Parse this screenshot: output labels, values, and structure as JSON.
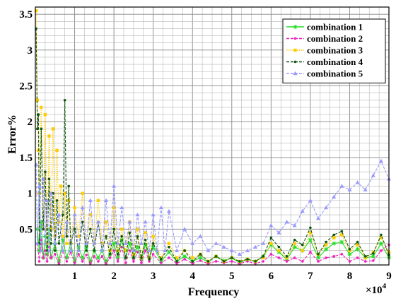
{
  "chart_data": {
    "type": "line",
    "xlabel": "Frequency",
    "ylabel": "Error%",
    "x_multiplier": "×10",
    "x_multiplier_exp": "4",
    "xlim": [
      0,
      9
    ],
    "ylim": [
      0,
      3.6
    ],
    "xticks": [
      1,
      2,
      3,
      4,
      5,
      6,
      7,
      8,
      9
    ],
    "yticks": [
      0.5,
      1,
      1.5,
      2,
      2.5,
      3,
      3.5
    ],
    "xtick_labels": [
      "1",
      "2",
      "3",
      "4",
      "5",
      "6",
      "7",
      "8",
      "9"
    ],
    "ytick_labels": [
      "0.5",
      "1",
      "1.5",
      "2",
      "2.5",
      "3",
      "3.5"
    ],
    "grid": true,
    "legend_position": "top-right",
    "series": [
      {
        "name": "combination 1",
        "color": "#22dd22",
        "marker": "star",
        "dash": "solid",
        "x": [
          0.05,
          0.1,
          0.15,
          0.2,
          0.25,
          0.3,
          0.35,
          0.4,
          0.5,
          0.6,
          0.7,
          0.8,
          0.9,
          1.0,
          1.1,
          1.2,
          1.3,
          1.4,
          1.5,
          1.6,
          1.7,
          1.8,
          1.9,
          2.0,
          2.1,
          2.2,
          2.3,
          2.4,
          2.5,
          2.6,
          2.7,
          2.8,
          2.9,
          3.0,
          3.2,
          3.4,
          3.6,
          3.8,
          4.0,
          4.2,
          4.4,
          4.6,
          4.8,
          5.0,
          5.2,
          5.4,
          5.6,
          5.8,
          6.0,
          6.2,
          6.4,
          6.6,
          6.8,
          7.0,
          7.2,
          7.4,
          7.6,
          7.8,
          8.0,
          8.2,
          8.4,
          8.6,
          8.8,
          9.0
        ],
        "y": [
          0.5,
          0.2,
          0.6,
          0.1,
          0.4,
          0.15,
          0.5,
          0.1,
          0.3,
          0.05,
          0.35,
          0.1,
          0.3,
          0.05,
          0.25,
          0.1,
          0.25,
          0.05,
          0.2,
          0.1,
          0.2,
          0.05,
          0.15,
          0.3,
          0.1,
          0.35,
          0.1,
          0.3,
          0.1,
          0.25,
          0.08,
          0.28,
          0.1,
          0.25,
          0.05,
          0.18,
          0.05,
          0.12,
          0.05,
          0.1,
          0.04,
          0.12,
          0.06,
          0.1,
          0.03,
          0.08,
          0.05,
          0.12,
          0.28,
          0.18,
          0.08,
          0.25,
          0.2,
          0.35,
          0.1,
          0.22,
          0.3,
          0.32,
          0.15,
          0.22,
          0.1,
          0.12,
          0.3,
          0.1
        ]
      },
      {
        "name": "combination 2",
        "color": "#ee22bb",
        "marker": "dot",
        "dash": "dashed",
        "x": [
          0.05,
          0.1,
          0.15,
          0.2,
          0.25,
          0.3,
          0.35,
          0.4,
          0.5,
          0.6,
          0.7,
          0.8,
          0.9,
          1.0,
          1.1,
          1.2,
          1.3,
          1.4,
          1.5,
          1.6,
          1.7,
          1.8,
          1.9,
          2.0,
          2.1,
          2.2,
          2.3,
          2.4,
          2.5,
          2.6,
          2.7,
          2.8,
          2.9,
          3.0,
          3.2,
          3.4,
          3.6,
          3.8,
          4.0,
          4.2,
          4.4,
          4.6,
          4.8,
          5.0,
          5.2,
          5.4,
          5.6,
          5.8,
          6.0,
          6.2,
          6.4,
          6.6,
          6.8,
          7.0,
          7.2,
          7.4,
          7.6,
          7.8,
          8.0,
          8.2,
          8.4,
          8.6,
          8.8,
          9.0
        ],
        "y": [
          0.3,
          0.05,
          0.35,
          0.1,
          0.2,
          0.05,
          0.25,
          0.1,
          0.15,
          0.02,
          0.2,
          0.05,
          0.18,
          0.03,
          0.15,
          0.05,
          0.14,
          0.02,
          0.12,
          0.05,
          0.12,
          0.02,
          0.1,
          0.2,
          0.05,
          0.25,
          0.03,
          0.2,
          0.05,
          0.18,
          0.03,
          0.2,
          0.05,
          0.15,
          0.03,
          0.1,
          0.02,
          0.08,
          0.02,
          0.06,
          0.02,
          0.05,
          0.03,
          0.05,
          0.02,
          0.05,
          0.02,
          0.05,
          0.15,
          0.1,
          0.05,
          0.1,
          0.05,
          0.18,
          0.05,
          0.1,
          0.12,
          0.15,
          0.05,
          0.1,
          0.05,
          0.06,
          0.2,
          0.28
        ]
      },
      {
        "name": "combination 3",
        "color": "#ffcc00",
        "marker": "square",
        "dash": "dotted",
        "x": [
          0.02,
          0.05,
          0.08,
          0.1,
          0.15,
          0.2,
          0.25,
          0.3,
          0.35,
          0.4,
          0.45,
          0.5,
          0.55,
          0.6,
          0.65,
          0.7,
          0.75,
          0.8,
          0.85,
          0.9,
          1.0,
          1.1,
          1.2,
          1.3,
          1.4,
          1.5,
          1.6,
          1.7,
          1.8,
          1.9,
          2.0,
          2.1,
          2.2,
          2.3,
          2.4,
          2.5,
          2.6,
          2.7,
          2.8,
          2.9,
          3.0,
          3.2,
          3.4,
          3.6,
          3.8,
          4.0,
          4.2,
          4.4,
          4.6,
          4.8,
          5.0,
          5.2,
          5.4,
          5.6,
          5.8,
          6.0,
          6.2,
          6.4,
          6.6,
          6.8,
          7.0,
          7.2,
          7.4,
          7.6,
          7.8,
          8.0,
          8.2,
          8.4,
          8.6,
          8.8,
          9.0
        ],
        "y": [
          3.55,
          2.3,
          1.6,
          1.0,
          2.2,
          0.5,
          2.1,
          0.3,
          1.8,
          0.5,
          1.9,
          0.4,
          1.6,
          0.6,
          1.1,
          0.4,
          1.0,
          0.3,
          0.9,
          0.3,
          0.8,
          0.4,
          1.0,
          0.3,
          0.7,
          0.3,
          0.9,
          0.3,
          0.6,
          0.2,
          0.8,
          0.2,
          0.5,
          0.2,
          0.6,
          0.15,
          0.5,
          0.1,
          0.45,
          0.1,
          0.4,
          0.1,
          0.3,
          0.1,
          0.2,
          0.1,
          0.15,
          0.05,
          0.12,
          0.05,
          0.1,
          0.05,
          0.08,
          0.05,
          0.1,
          0.3,
          0.2,
          0.1,
          0.3,
          0.2,
          0.45,
          0.15,
          0.28,
          0.38,
          0.42,
          0.2,
          0.28,
          0.1,
          0.18,
          0.38,
          0.18
        ]
      },
      {
        "name": "combination 4",
        "color": "#115511",
        "marker": "dot",
        "dash": "dashed",
        "x": [
          0.02,
          0.05,
          0.08,
          0.1,
          0.15,
          0.2,
          0.25,
          0.3,
          0.35,
          0.4,
          0.45,
          0.5,
          0.55,
          0.6,
          0.7,
          0.75,
          0.8,
          0.85,
          0.9,
          1.0,
          1.1,
          1.2,
          1.3,
          1.4,
          1.5,
          1.6,
          1.7,
          1.8,
          1.9,
          2.0,
          2.1,
          2.2,
          2.3,
          2.4,
          2.5,
          2.6,
          2.7,
          2.8,
          2.9,
          3.0,
          3.2,
          3.4,
          3.6,
          3.8,
          4.0,
          4.2,
          4.4,
          4.6,
          4.8,
          5.0,
          5.2,
          5.4,
          5.6,
          5.8,
          6.0,
          6.2,
          6.4,
          6.6,
          6.8,
          7.0,
          7.2,
          7.4,
          7.6,
          7.8,
          8.0,
          8.2,
          8.4,
          8.6,
          8.8,
          9.0
        ],
        "y": [
          3.3,
          1.9,
          2.1,
          0.3,
          1.9,
          0.5,
          1.3,
          0.2,
          1.2,
          0.3,
          1.0,
          0.2,
          0.9,
          0.3,
          0.7,
          2.3,
          0.4,
          1.1,
          0.3,
          0.5,
          0.2,
          0.6,
          0.2,
          0.5,
          0.2,
          0.6,
          0.2,
          0.4,
          0.15,
          0.5,
          0.15,
          0.4,
          0.1,
          0.45,
          0.1,
          0.4,
          0.1,
          0.35,
          0.08,
          0.3,
          0.08,
          0.25,
          0.05,
          0.2,
          0.05,
          0.15,
          0.05,
          0.12,
          0.05,
          0.1,
          0.05,
          0.08,
          0.05,
          0.12,
          0.38,
          0.25,
          0.12,
          0.35,
          0.28,
          0.52,
          0.15,
          0.32,
          0.42,
          0.47,
          0.22,
          0.32,
          0.12,
          0.16,
          0.42,
          0.14
        ]
      },
      {
        "name": "combination 5",
        "color": "#9999ff",
        "marker": "triangle",
        "dash": "dashed",
        "x": [
          0.02,
          0.05,
          0.1,
          0.15,
          0.2,
          0.25,
          0.3,
          0.35,
          0.4,
          0.5,
          0.6,
          0.7,
          0.8,
          0.9,
          1.0,
          1.1,
          1.2,
          1.3,
          1.4,
          1.5,
          1.6,
          1.7,
          1.8,
          1.9,
          2.0,
          2.1,
          2.2,
          2.3,
          2.4,
          2.5,
          2.6,
          2.7,
          2.8,
          2.9,
          3.0,
          3.1,
          3.2,
          3.3,
          3.4,
          3.6,
          3.8,
          4.0,
          4.2,
          4.4,
          4.6,
          4.8,
          5.0,
          5.2,
          5.4,
          5.6,
          5.8,
          6.0,
          6.2,
          6.4,
          6.6,
          6.8,
          7.0,
          7.2,
          7.4,
          7.6,
          7.8,
          8.0,
          8.2,
          8.4,
          8.6,
          8.8,
          9.0
        ],
        "y": [
          1.4,
          0.3,
          1.1,
          0.2,
          1.2,
          0.3,
          0.9,
          0.2,
          1.0,
          0.3,
          0.7,
          0.2,
          0.6,
          0.2,
          0.7,
          0.2,
          0.8,
          0.3,
          0.9,
          0.3,
          0.6,
          0.2,
          0.9,
          0.3,
          1.1,
          0.3,
          0.8,
          0.3,
          0.6,
          0.2,
          0.7,
          0.3,
          0.6,
          0.2,
          0.7,
          0.2,
          0.8,
          0.2,
          0.75,
          0.2,
          0.5,
          0.3,
          0.4,
          0.2,
          0.3,
          0.25,
          0.2,
          0.15,
          0.2,
          0.25,
          0.3,
          0.55,
          0.45,
          0.6,
          0.55,
          0.75,
          0.9,
          0.65,
          0.8,
          0.95,
          1.1,
          1.05,
          1.15,
          1.05,
          1.25,
          1.45,
          1.2
        ]
      }
    ]
  }
}
